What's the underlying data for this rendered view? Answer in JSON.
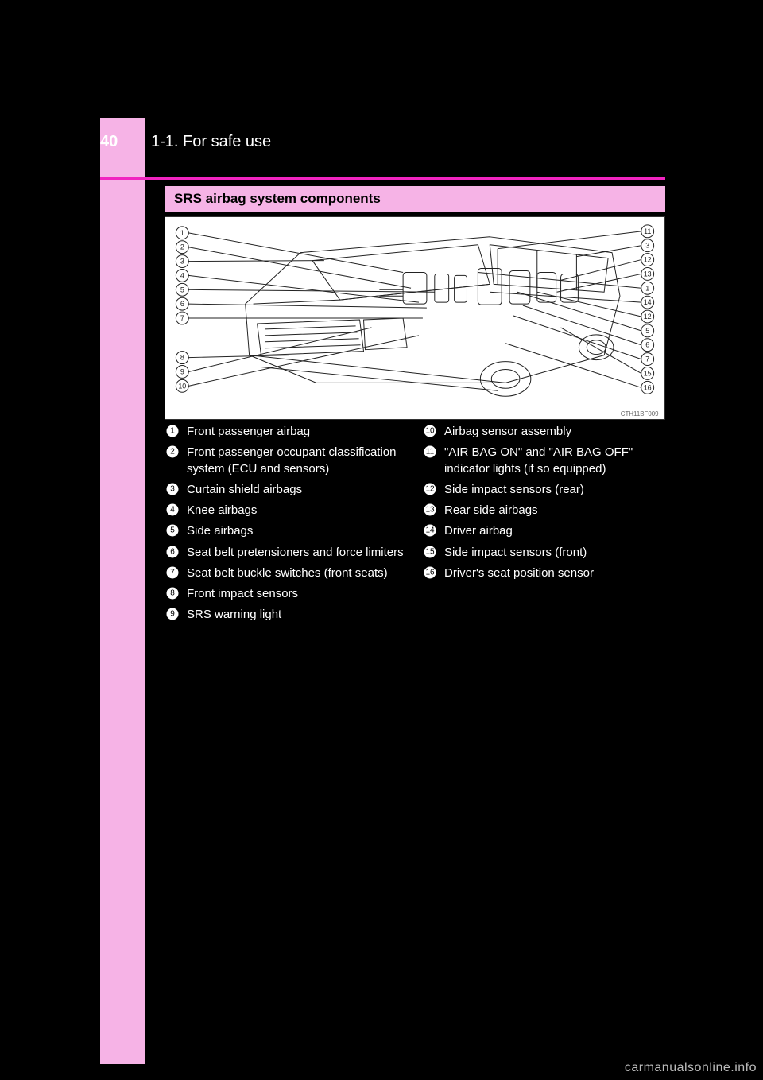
{
  "page_number": "40",
  "breadcrumb": "1-1. For safe use",
  "section_title": "SRS airbag system components",
  "image_code": "CTH11BF009",
  "watermark": "carmanualsonline.info",
  "diagram": {
    "left_callouts": [
      1,
      2,
      3,
      4,
      5,
      6,
      7,
      8,
      9,
      10
    ],
    "right_callouts": [
      11,
      3,
      12,
      13,
      1,
      14,
      12,
      5,
      6,
      7,
      15,
      16
    ]
  },
  "legend": {
    "left": [
      {
        "n": 1,
        "text": "Front passenger airbag"
      },
      {
        "n": 2,
        "text": "Front passenger occupant classification system (ECU and sensors)"
      },
      {
        "n": 3,
        "text": "Curtain shield airbags"
      },
      {
        "n": 4,
        "text": "Knee airbags"
      },
      {
        "n": 5,
        "text": "Side airbags"
      },
      {
        "n": 6,
        "text": "Seat belt pretensioners and force limiters"
      },
      {
        "n": 7,
        "text": "Seat belt buckle switches (front seats)"
      },
      {
        "n": 8,
        "text": "Front impact sensors"
      },
      {
        "n": 9,
        "text": "SRS warning light"
      }
    ],
    "right": [
      {
        "n": 10,
        "text": "Airbag sensor assembly"
      },
      {
        "n": 11,
        "text": "\"AIR BAG ON\" and \"AIR BAG OFF\" indicator lights (if so equipped)"
      },
      {
        "n": 12,
        "text": "Side impact sensors (rear)"
      },
      {
        "n": 13,
        "text": "Rear side airbags"
      },
      {
        "n": 14,
        "text": "Driver airbag"
      },
      {
        "n": 15,
        "text": "Side impact sensors (front)"
      },
      {
        "n": 16,
        "text": "Driver's seat position sensor"
      }
    ]
  },
  "colors": {
    "background": "#000000",
    "sidebar": "#f6b3e6",
    "accent": "#f124c0",
    "text": "#ffffff",
    "diagram_bg": "#ffffff",
    "diagram_stroke": "#222222"
  }
}
